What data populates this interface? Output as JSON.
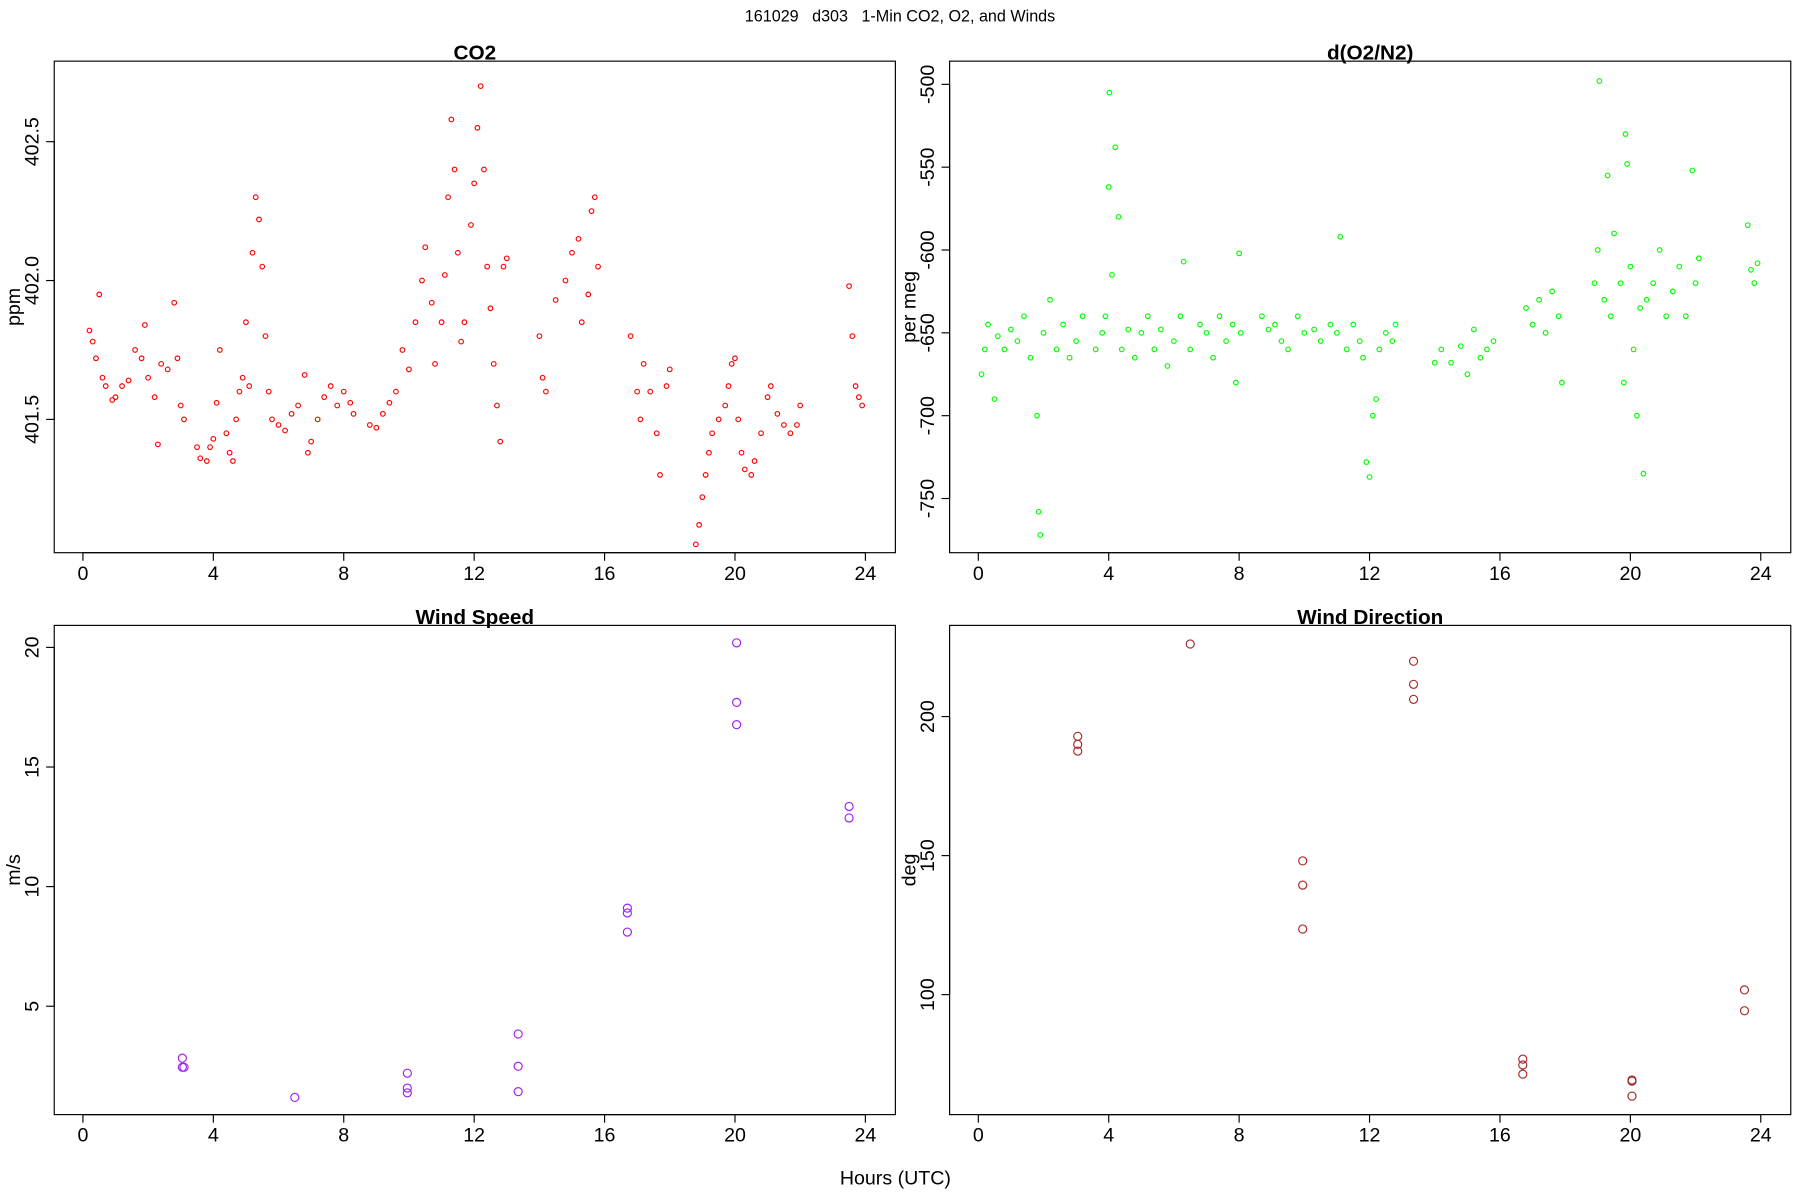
{
  "title": "161029   d303   1-Min CO2, O2, and Winds",
  "xlabel": "Hours (UTC)",
  "chart_data": [
    {
      "type": "scatter",
      "title": "CO2",
      "ylabel": "ppm",
      "color": "#ff0000",
      "xlim": [
        -0.88,
        24.92
      ],
      "xticks": [
        0,
        4,
        8,
        12,
        16,
        20,
        24
      ],
      "ylim": [
        401.02,
        402.79
      ],
      "yticks": [
        401.5,
        {
          "value": 402,
          "label": "402.0"
        },
        402.5
      ],
      "x": [
        0.2,
        0.3,
        0.4,
        0.5,
        0.6,
        0.7,
        0.9,
        1.0,
        1.2,
        1.4,
        1.6,
        1.8,
        1.9,
        2.0,
        2.2,
        2.3,
        2.4,
        2.6,
        2.8,
        2.9,
        3.0,
        3.1,
        3.5,
        3.6,
        3.8,
        3.9,
        4.0,
        4.1,
        4.2,
        4.4,
        4.5,
        4.6,
        4.7,
        4.8,
        4.9,
        5.0,
        5.1,
        5.2,
        5.3,
        5.4,
        5.5,
        5.6,
        5.7,
        5.8,
        6.0,
        6.2,
        6.4,
        6.6,
        6.8,
        6.9,
        7.0,
        7.2,
        7.4,
        7.6,
        7.8,
        8.0,
        8.2,
        8.3,
        8.8,
        9.0,
        9.2,
        9.4,
        9.6,
        9.8,
        10.0,
        10.2,
        10.4,
        10.5,
        10.7,
        10.8,
        11.0,
        11.1,
        11.2,
        11.3,
        11.4,
        11.5,
        11.6,
        11.7,
        11.9,
        12.0,
        12.1,
        12.2,
        12.3,
        12.4,
        12.5,
        12.6,
        12.7,
        12.8,
        12.9,
        13.0,
        14.0,
        14.1,
        14.2,
        14.5,
        14.8,
        15.0,
        15.2,
        15.3,
        15.5,
        15.6,
        15.7,
        15.8,
        16.8,
        17.0,
        17.1,
        17.2,
        17.4,
        17.6,
        17.7,
        17.9,
        18.0,
        18.8,
        18.9,
        19.0,
        19.1,
        19.2,
        19.3,
        19.5,
        19.7,
        19.8,
        19.9,
        20.0,
        20.1,
        20.2,
        20.3,
        20.5,
        20.6,
        20.8,
        21.0,
        21.1,
        21.3,
        21.5,
        21.7,
        21.9,
        22.0,
        23.5,
        23.6,
        23.7,
        23.8,
        23.9
      ],
      "values": [
        401.82,
        401.78,
        401.72,
        401.95,
        401.65,
        401.62,
        401.57,
        401.58,
        401.62,
        401.64,
        401.75,
        401.72,
        401.84,
        401.65,
        401.58,
        401.41,
        401.7,
        401.68,
        401.92,
        401.72,
        401.55,
        401.5,
        401.4,
        401.36,
        401.35,
        401.4,
        401.43,
        401.56,
        401.75,
        401.45,
        401.38,
        401.35,
        401.5,
        401.6,
        401.65,
        401.85,
        401.62,
        402.1,
        402.3,
        402.22,
        402.05,
        401.8,
        401.6,
        401.5,
        401.48,
        401.46,
        401.52,
        401.55,
        401.66,
        401.38,
        401.42,
        401.5,
        401.58,
        401.62,
        401.55,
        401.6,
        401.56,
        401.52,
        401.48,
        401.47,
        401.52,
        401.56,
        401.6,
        401.75,
        401.68,
        401.85,
        402.0,
        402.12,
        401.92,
        401.7,
        401.85,
        402.02,
        402.3,
        402.58,
        402.4,
        402.1,
        401.78,
        401.85,
        402.2,
        402.35,
        402.55,
        402.7,
        402.4,
        402.05,
        401.9,
        401.7,
        401.55,
        401.42,
        402.05,
        402.08,
        401.8,
        401.65,
        401.6,
        401.93,
        402.0,
        402.1,
        402.15,
        401.85,
        401.95,
        402.25,
        402.3,
        402.05,
        401.8,
        401.6,
        401.5,
        401.7,
        401.6,
        401.45,
        401.3,
        401.62,
        401.68,
        401.05,
        401.12,
        401.22,
        401.3,
        401.38,
        401.45,
        401.5,
        401.55,
        401.62,
        401.7,
        401.72,
        401.5,
        401.38,
        401.32,
        401.3,
        401.35,
        401.45,
        401.58,
        401.62,
        401.52,
        401.48,
        401.45,
        401.48,
        401.55,
        401.98,
        401.8,
        401.62,
        401.58,
        401.55
      ]
    },
    {
      "type": "scatter",
      "title": "d(O2/N2)",
      "ylabel": "per meg",
      "color": "#00ff00",
      "xlim": [
        -0.88,
        24.92
      ],
      "xticks": [
        0,
        4,
        8,
        12,
        16,
        20,
        24
      ],
      "ylim": [
        -782.7,
        -486
      ],
      "yticks": [
        -750,
        -700,
        -650,
        -600,
        -550,
        -500
      ],
      "x": [
        0.1,
        0.2,
        0.3,
        0.5,
        0.6,
        0.8,
        1.0,
        1.2,
        1.4,
        1.6,
        1.8,
        1.85,
        1.9,
        2.0,
        2.2,
        2.4,
        2.6,
        2.8,
        3.0,
        3.2,
        3.6,
        3.8,
        3.9,
        4.0,
        4.02,
        4.1,
        4.2,
        4.3,
        4.4,
        4.6,
        4.8,
        5.0,
        5.2,
        5.4,
        5.6,
        5.8,
        6.0,
        6.2,
        6.3,
        6.5,
        6.8,
        7.0,
        7.2,
        7.4,
        7.6,
        7.8,
        7.9,
        8.0,
        8.05,
        8.7,
        8.9,
        9.1,
        9.3,
        9.5,
        9.8,
        10.0,
        10.3,
        10.5,
        10.8,
        11.0,
        11.1,
        11.3,
        11.5,
        11.7,
        11.8,
        11.9,
        12.0,
        12.1,
        12.2,
        12.3,
        12.5,
        12.7,
        12.8,
        14.0,
        14.2,
        14.5,
        14.8,
        15.0,
        15.2,
        15.4,
        15.6,
        15.8,
        16.8,
        17.0,
        17.2,
        17.4,
        17.6,
        17.8,
        17.9,
        18.9,
        19.0,
        19.05,
        19.2,
        19.3,
        19.4,
        19.5,
        19.7,
        19.8,
        19.85,
        19.9,
        20.0,
        20.1,
        20.2,
        20.3,
        20.4,
        20.5,
        20.7,
        20.9,
        21.1,
        21.3,
        21.5,
        21.7,
        21.9,
        22.0,
        22.1,
        23.6,
        23.7,
        23.8,
        23.9
      ],
      "values": [
        -675,
        -660,
        -645,
        -690,
        -652,
        -660,
        -648,
        -655,
        -640,
        -665,
        -700,
        -758,
        -772,
        -650,
        -630,
        -660,
        -645,
        -665,
        -655,
        -640,
        -660,
        -650,
        -640,
        -562,
        -505,
        -615,
        -538,
        -580,
        -660,
        -648,
        -665,
        -650,
        -640,
        -660,
        -648,
        -670,
        -655,
        -640,
        -607,
        -660,
        -645,
        -650,
        -665,
        -640,
        -655,
        -645,
        -680,
        -602,
        -650,
        -640,
        -648,
        -645,
        -655,
        -660,
        -640,
        -650,
        -648,
        -655,
        -645,
        -650,
        -592,
        -660,
        -645,
        -655,
        -665,
        -728,
        -737,
        -700,
        -690,
        -660,
        -650,
        -655,
        -645,
        -668,
        -660,
        -668,
        -658,
        -675,
        -648,
        -665,
        -660,
        -655,
        -635,
        -645,
        -630,
        -650,
        -625,
        -640,
        -680,
        -620,
        -600,
        -498,
        -630,
        -555,
        -640,
        -590,
        -620,
        -680,
        -530,
        -548,
        -610,
        -660,
        -700,
        -635,
        -735,
        -630,
        -620,
        -600,
        -640,
        -625,
        -610,
        -640,
        -552,
        -620,
        -605,
        -585,
        -612,
        -620,
        -608
      ]
    },
    {
      "type": "scatter",
      "title": "Wind Speed",
      "ylabel": "m/s",
      "color": "#a020f0",
      "xlim": [
        -0.88,
        24.92
      ],
      "xticks": [
        0,
        4,
        8,
        12,
        16,
        20,
        24
      ],
      "ylim": [
        0.47,
        20.92
      ],
      "yticks": [
        5,
        10,
        15,
        20
      ],
      "x": [
        3.05,
        3.05,
        3.1,
        6.5,
        9.95,
        9.95,
        9.95,
        13.35,
        13.35,
        13.35,
        16.7,
        16.7,
        16.7,
        20.05,
        20.05,
        20.05,
        23.5,
        23.5
      ],
      "values": [
        2.83,
        2.45,
        2.45,
        1.19,
        2.2,
        1.58,
        1.38,
        3.84,
        2.49,
        1.43,
        9.1,
        8.9,
        8.1,
        20.19,
        17.7,
        16.77,
        13.35,
        12.87
      ]
    },
    {
      "type": "scatter",
      "title": "Wind Direction",
      "ylabel": "deg",
      "color": "#a52a2a",
      "xlim": [
        -0.88,
        24.92
      ],
      "xticks": [
        0,
        4,
        8,
        12,
        16,
        20,
        24
      ],
      "ylim": [
        56.85,
        232.8
      ],
      "yticks": [
        100,
        150,
        200
      ],
      "x": [
        3.05,
        3.05,
        3.05,
        6.5,
        9.95,
        9.95,
        9.95,
        13.35,
        13.35,
        13.35,
        16.7,
        16.7,
        16.7,
        20.05,
        20.05,
        20.05,
        23.5,
        23.5
      ],
      "values": [
        192.9,
        190,
        187.6,
        226.1,
        148.1,
        139.4,
        123.6,
        219.9,
        211.6,
        206.2,
        76.8,
        74.7,
        71.4,
        69.3,
        68.9,
        63.5,
        101.7,
        94.2
      ]
    }
  ]
}
